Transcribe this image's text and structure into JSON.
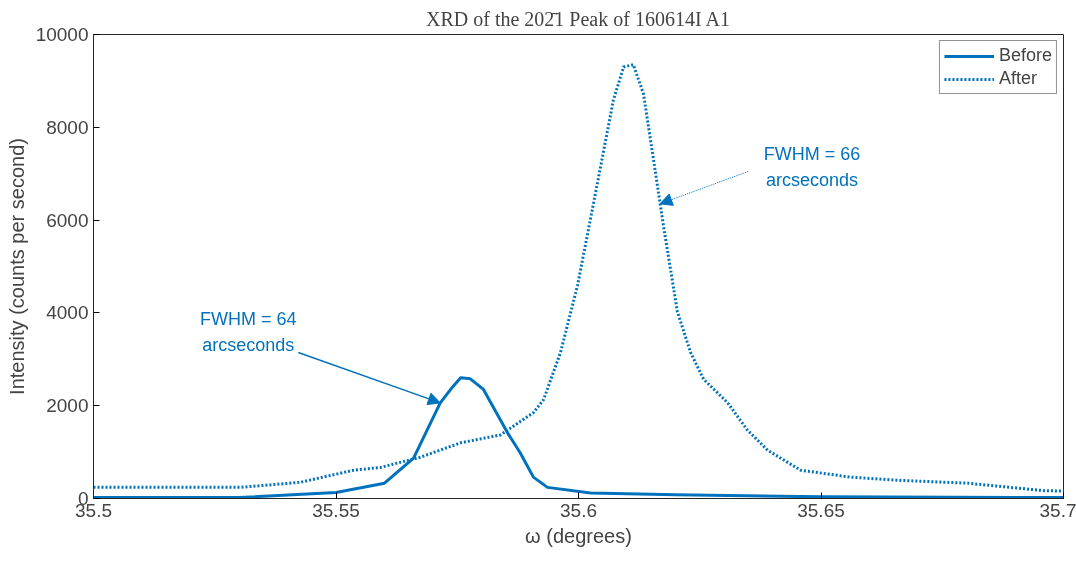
{
  "chart_data": {
    "type": "line",
    "title": "XRD of the 202̄1 Peak of 160614I A1",
    "xlabel": "ω (degrees)",
    "ylabel": "Intensity (counts per second)",
    "xlim": [
      35.5,
      35.7
    ],
    "xticks": [
      35.5,
      35.55,
      35.6,
      35.65,
      35.7
    ],
    "ylim": [
      0,
      10000
    ],
    "yticks": [
      0,
      2000,
      4000,
      6000,
      8000,
      10000
    ],
    "grid": false,
    "legend": "top right",
    "series": [
      {
        "name": "Before",
        "color": "#0072bd",
        "line_style": "solid",
        "x": [
          35.5,
          35.53,
          35.55,
          35.56,
          35.566,
          35.5695,
          35.5715,
          35.574,
          35.5757,
          35.5777,
          35.5804,
          35.5854,
          35.588,
          35.5907,
          35.5936,
          35.6025,
          35.62,
          35.65,
          35.7
        ],
        "values": [
          20,
          20,
          130,
          330,
          870,
          1630,
          2060,
          2400,
          2600,
          2580,
          2350,
          1410,
          980,
          460,
          240,
          120,
          80,
          40,
          20
        ]
      },
      {
        "name": "After",
        "color": "#0072bd",
        "line_style": "dotted",
        "x": [
          35.5,
          35.5303,
          35.5427,
          35.5536,
          35.5592,
          35.5674,
          35.5757,
          35.5839,
          35.5907,
          35.5928,
          35.5963,
          35.5998,
          35.6025,
          35.6052,
          35.6072,
          35.6093,
          35.6113,
          35.6134,
          35.6155,
          35.6175,
          35.6204,
          35.6231,
          35.6258,
          35.6307,
          35.6348,
          35.639,
          35.6458,
          35.6561,
          35.6664,
          35.6802,
          35.6959,
          35.7
        ],
        "values": [
          240,
          240,
          350,
          610,
          670,
          890,
          1200,
          1370,
          1850,
          2130,
          3150,
          4590,
          6040,
          7500,
          8590,
          9300,
          9350,
          8720,
          7280,
          5890,
          4020,
          3150,
          2570,
          2070,
          1480,
          1040,
          610,
          460,
          390,
          330,
          170,
          160
        ]
      }
    ],
    "annotations": [
      {
        "text": "FWHM = 64\narcseconds",
        "x": 35.5715,
        "y": 2060
      },
      {
        "text": "FWHM = 66\narcseconds",
        "x": 35.6168,
        "y": 6350
      }
    ]
  }
}
